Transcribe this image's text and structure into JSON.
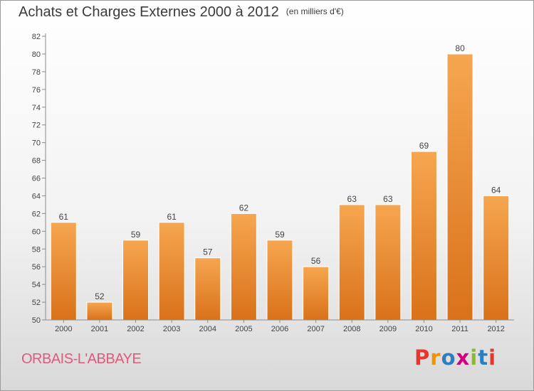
{
  "header": {
    "title": "Achats et Charges Externes 2000 à 2012",
    "unit": "(en milliers d'€)"
  },
  "footer": {
    "commune": "ORBAIS-L'ABBAYE",
    "logo_letters": [
      "P",
      "r",
      "o",
      "x",
      "i",
      "t",
      "i"
    ],
    "logo_colors": [
      "#e8372a",
      "#f39200",
      "#2a7fc1",
      "#d6007d",
      "#8bb92f",
      "#2a7fc1",
      "#e8372a"
    ]
  },
  "colors": {
    "bar_top": "#f6a650",
    "bar_bottom": "#d9721a",
    "bar_edge": "#ffffff"
  },
  "chart_data": {
    "type": "bar",
    "title": "Achats et Charges Externes 2000 à 2012",
    "subtitle": "(en milliers d'€)",
    "xlabel": "",
    "ylabel": "",
    "categories": [
      "2000",
      "2001",
      "2002",
      "2003",
      "2004",
      "2005",
      "2006",
      "2007",
      "2008",
      "2009",
      "2010",
      "2011",
      "2012"
    ],
    "values": [
      61,
      52,
      59,
      61,
      57,
      62,
      59,
      56,
      63,
      63,
      69,
      80,
      64
    ],
    "ylim": [
      50,
      82
    ],
    "yticks": [
      50,
      52,
      54,
      56,
      58,
      60,
      62,
      64,
      66,
      68,
      70,
      72,
      74,
      76,
      78,
      80,
      82
    ],
    "grid": false,
    "legend": "none"
  }
}
